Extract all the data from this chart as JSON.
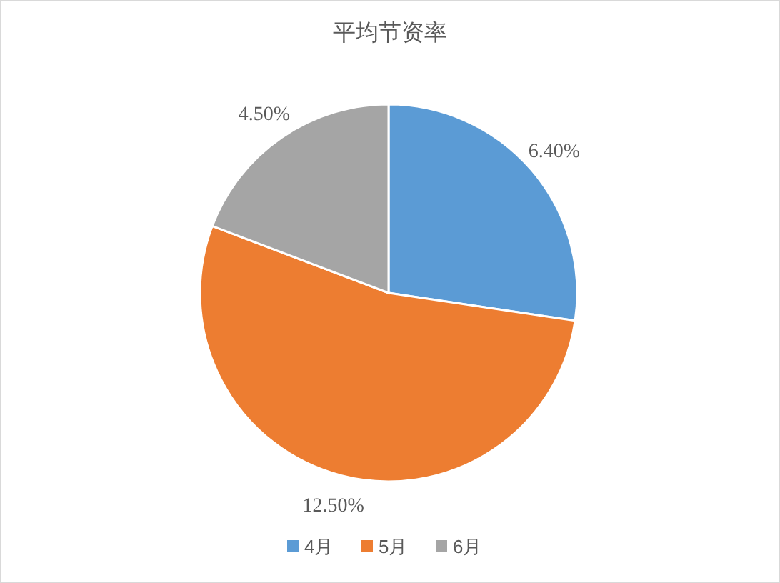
{
  "chart_data": {
    "type": "pie",
    "title": "平均节资率",
    "categories": [
      "4月",
      "5月",
      "6月"
    ],
    "values": [
      6.4,
      12.5,
      4.5
    ],
    "colors": [
      "#5b9bd5",
      "#ed7d31",
      "#a5a5a5"
    ],
    "value_labels": [
      "6.40%",
      "12.50%",
      "4.50%"
    ],
    "legend": "bottom"
  }
}
